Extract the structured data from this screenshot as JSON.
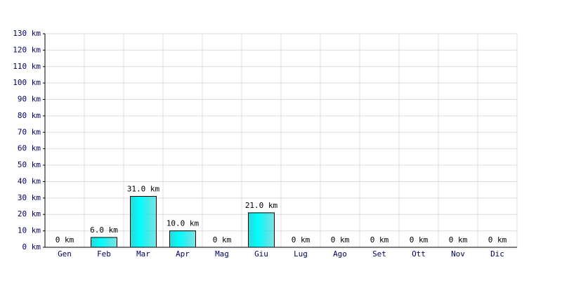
{
  "chart_data": {
    "type": "bar",
    "categories": [
      "Gen",
      "Feb",
      "Mar",
      "Apr",
      "Mag",
      "Giu",
      "Lug",
      "Ago",
      "Set",
      "Ott",
      "Nov",
      "Dic"
    ],
    "values": [
      0,
      6,
      31,
      10,
      0,
      21,
      0,
      0,
      0,
      0,
      0,
      0
    ],
    "value_labels": [
      "0 km",
      "6.0 km",
      "31.0 km",
      "10.0 km",
      "0 km",
      "21.0 km",
      "0 km",
      "0 km",
      "0 km",
      "0 km",
      "0 km",
      "0 km"
    ],
    "color": "#00cccc",
    "ylim": [
      0,
      130
    ],
    "yticks": [
      {
        "value": 0,
        "label": "0 km"
      },
      {
        "value": 10,
        "label": "10 km"
      },
      {
        "value": 20,
        "label": "20 km"
      },
      {
        "value": 30,
        "label": "30 km"
      },
      {
        "value": 40,
        "label": "40 km"
      },
      {
        "value": 50,
        "label": "50 km"
      },
      {
        "value": 60,
        "label": "60 km"
      },
      {
        "value": 70,
        "label": "70 km"
      },
      {
        "value": 80,
        "label": "80 km"
      },
      {
        "value": 90,
        "label": "90 km"
      },
      {
        "value": 100,
        "label": "100 km"
      },
      {
        "value": 110,
        "label": "110 km"
      },
      {
        "value": 120,
        "label": "120 km"
      },
      {
        "value": 130,
        "label": "130 km"
      }
    ],
    "grid": true
  }
}
